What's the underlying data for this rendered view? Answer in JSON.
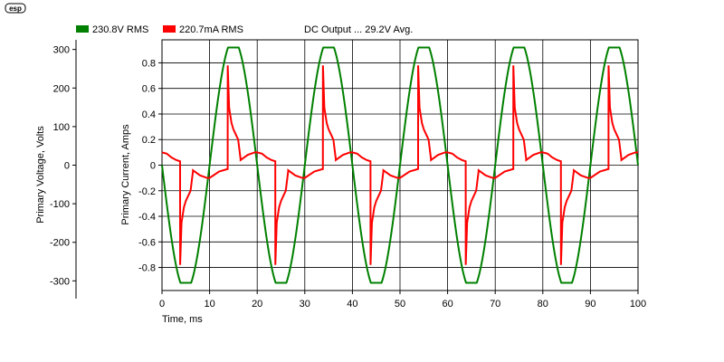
{
  "logo": {
    "text": "esp"
  },
  "legend": [
    {
      "label": "230.8V RMS",
      "color": "#008000"
    },
    {
      "label": "220.7mA RMS",
      "color": "#ff0000"
    }
  ],
  "annotation": "DC Output ... 29.2V Avg.",
  "chart_data": {
    "type": "line",
    "title": "",
    "xlabel": "Time, ms",
    "ylabel_left": "Primary Voltage, Volts",
    "ylabel_right": "Primary Current, Amps",
    "xlim": [
      0,
      100
    ],
    "x_ticks": [
      "0",
      "10",
      "20",
      "30",
      "40",
      "50",
      "60",
      "70",
      "80",
      "90",
      "100"
    ],
    "voltage_axis": {
      "lim": [
        -325,
        325
      ],
      "ticks": [
        "300",
        "200",
        "100",
        "0",
        "-100",
        "-200",
        "-300"
      ]
    },
    "current_axis": {
      "lim": [
        -0.98,
        0.98
      ],
      "ticks": [
        "0.8",
        "0.6",
        "0.4",
        "0.2",
        "0",
        "-0.2",
        "-0.4",
        "-0.6",
        "-0.8"
      ]
    },
    "grid": true,
    "series": [
      {
        "name": "230.8V RMS",
        "axis": "voltage",
        "color": "#008000",
        "period_ms": 20,
        "amplitude": 325,
        "clip": 305,
        "x": [
          0,
          5,
          10,
          15,
          20,
          25,
          30,
          35,
          40,
          45,
          50,
          55,
          60,
          65,
          70,
          75,
          80,
          85,
          90,
          95,
          100
        ],
        "values": [
          0,
          -305,
          0,
          305,
          0,
          -305,
          0,
          305,
          0,
          -305,
          0,
          305,
          0,
          -305,
          0,
          305,
          0,
          -305,
          0,
          305,
          0
        ]
      },
      {
        "name": "220.7mA RMS",
        "axis": "current",
        "color": "#ff0000",
        "period_ms": 20,
        "x": [
          0,
          1,
          2,
          3,
          3.8,
          3.81,
          4.1,
          4.6,
          5.0,
          5.5,
          6.0,
          6.5,
          6.51,
          8,
          9.5,
          10,
          12,
          13.8,
          13.81,
          14.1,
          14.6,
          15.0,
          15.5,
          16.0,
          16.5,
          16.51,
          18,
          19.5,
          20
        ],
        "values": [
          0.1,
          0.09,
          0.06,
          0.04,
          0.03,
          -0.78,
          -0.45,
          -0.33,
          -0.28,
          -0.24,
          -0.2,
          -0.05,
          -0.04,
          -0.08,
          -0.1,
          -0.1,
          -0.05,
          -0.03,
          0.78,
          0.45,
          0.33,
          0.28,
          0.24,
          0.2,
          0.05,
          0.04,
          0.08,
          0.1,
          0.1
        ]
      }
    ]
  }
}
